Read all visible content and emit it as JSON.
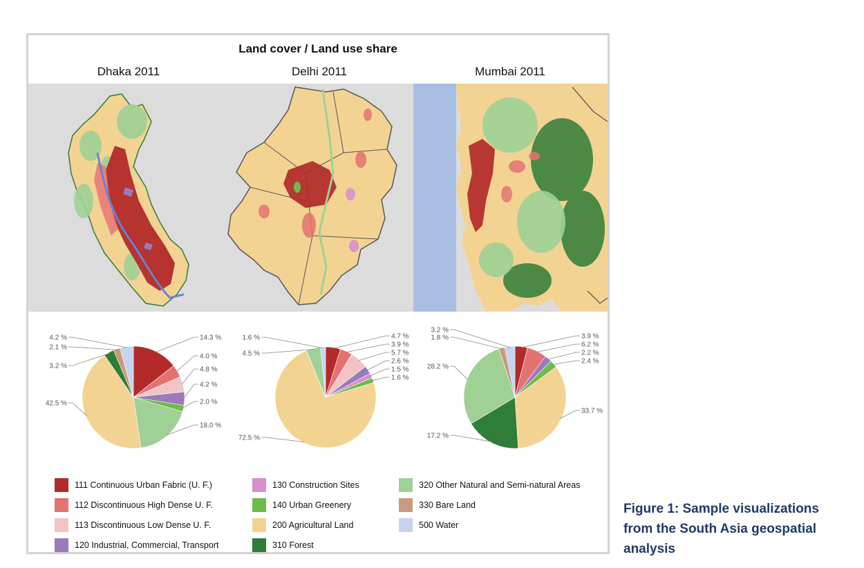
{
  "figure": {
    "title": "Land cover / Land use share",
    "caption": "Figure 1: Sample visualizations from the South Asia geospatial analysis"
  },
  "colors": {
    "111": "#b22a2a",
    "112": "#e57272",
    "113": "#f2c4c4",
    "120": "#9a7abd",
    "130": "#d68ed0",
    "140": "#6dbb4a",
    "200": "#f3d392",
    "310": "#2e7d38",
    "320": "#9fd096",
    "330": "#c99a7a",
    "500": "#c6d4ef",
    "sea": "#a9bee3",
    "background": "#dcdcdc"
  },
  "legend": [
    {
      "code": "111",
      "label": "111  Continuous Urban Fabric (U. F.)"
    },
    {
      "code": "112",
      "label": "112  Discontinuous High Dense U. F."
    },
    {
      "code": "113",
      "label": "113  Discontinuous Low Dense U. F."
    },
    {
      "code": "120",
      "label": "120  Industrial, Commercial, Transport"
    },
    {
      "code": "130",
      "label": "130  Construction Sites"
    },
    {
      "code": "140",
      "label": "140  Urban Greenery"
    },
    {
      "code": "200",
      "label": "200  Agricultural Land"
    },
    {
      "code": "310",
      "label": "310  Forest"
    },
    {
      "code": "320",
      "label": "320  Other Natural and Semi-natural Areas"
    },
    {
      "code": "330",
      "label": "330  Bare Land"
    },
    {
      "code": "500",
      "label": "500  Water"
    }
  ],
  "chart_data": [
    {
      "type": "pie",
      "title": "Dhaka 2011",
      "slices": [
        {
          "code": "111",
          "value": 14.3,
          "label": "14.3 %"
        },
        {
          "code": "112",
          "value": 4.0,
          "label": "4.0 %"
        },
        {
          "code": "113",
          "value": 4.8,
          "label": "4.8 %"
        },
        {
          "code": "120",
          "value": 4.2,
          "label": "4.2 %"
        },
        {
          "code": "140",
          "value": 2.0,
          "label": "2.0 %"
        },
        {
          "code": "320",
          "value": 18.0,
          "label": "18.0 %"
        },
        {
          "code": "200",
          "value": 42.5,
          "label": "42.5 %"
        },
        {
          "code": "310",
          "value": 3.2,
          "label": "3.2 %"
        },
        {
          "code": "330",
          "value": 2.1,
          "label": "2.1 %"
        },
        {
          "code": "500",
          "value": 4.2,
          "label": "4.2 %"
        }
      ]
    },
    {
      "type": "pie",
      "title": "Delhi 2011",
      "slices": [
        {
          "code": "111",
          "value": 4.7,
          "label": "4.7 %"
        },
        {
          "code": "112",
          "value": 3.9,
          "label": "3.9 %"
        },
        {
          "code": "113",
          "value": 5.7,
          "label": "5.7 %"
        },
        {
          "code": "120",
          "value": 2.6,
          "label": "2.6 %"
        },
        {
          "code": "130",
          "value": 1.5,
          "label": "1.5 %"
        },
        {
          "code": "140",
          "value": 1.6,
          "label": "1.6 %"
        },
        {
          "code": "200",
          "value": 72.5,
          "label": "72.5 %"
        },
        {
          "code": "320",
          "value": 4.5,
          "label": "4.5 %"
        },
        {
          "code": "500",
          "value": 1.6,
          "label": "1.6 %"
        }
      ]
    },
    {
      "type": "pie",
      "title": "Mumbai 2011",
      "slices": [
        {
          "code": "111",
          "value": 3.9,
          "label": "3.9 %"
        },
        {
          "code": "112",
          "value": 6.2,
          "label": "6.2 %"
        },
        {
          "code": "120",
          "value": 2.2,
          "label": "2.2 %"
        },
        {
          "code": "140",
          "value": 2.4,
          "label": "2.4 %"
        },
        {
          "code": "200",
          "value": 33.7,
          "label": "33.7 %"
        },
        {
          "code": "310",
          "value": 17.2,
          "label": "17.2 %"
        },
        {
          "code": "320",
          "value": 28.2,
          "label": "28.2 %"
        },
        {
          "code": "330",
          "value": 1.8,
          "label": "1.8 %"
        },
        {
          "code": "500",
          "value": 3.2,
          "label": "3.2 %"
        }
      ]
    }
  ]
}
